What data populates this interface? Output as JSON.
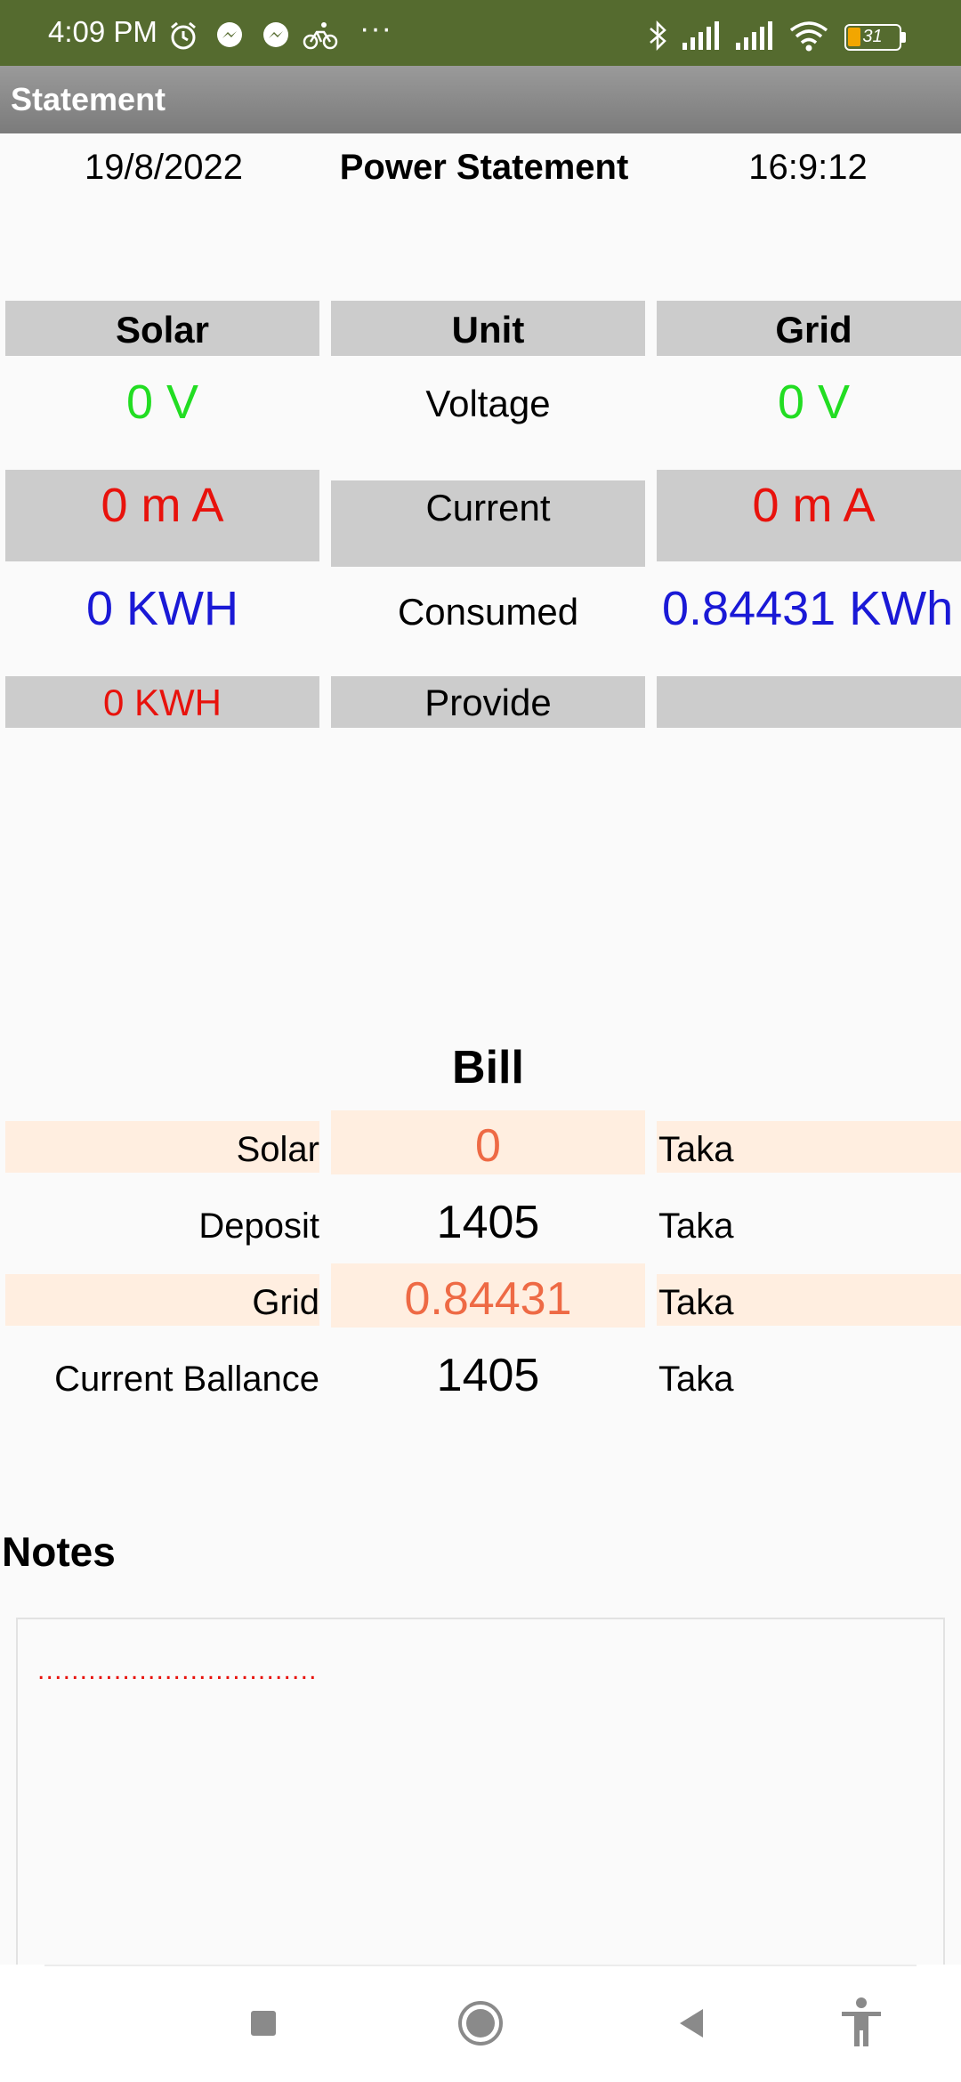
{
  "status_bar": {
    "time": "4:09 PM",
    "more": "···",
    "battery": "31",
    "icons": [
      "alarm-icon",
      "messenger-icon",
      "messenger-icon",
      "cycling-icon",
      "bluetooth-icon",
      "signal-icon",
      "signal-icon",
      "wifi-icon",
      "battery-icon"
    ]
  },
  "title_bar": {
    "title": "Statement"
  },
  "header": {
    "date": "19/8/2022",
    "title": "Power Statement",
    "time": "16:9:12"
  },
  "power_table": {
    "columns": {
      "solar": "Solar",
      "unit": "Unit",
      "grid": "Grid"
    },
    "rows": [
      {
        "unit": "Voltage",
        "solar": "0  V",
        "grid": "0  V"
      },
      {
        "unit": "Current",
        "solar": "0 m A",
        "grid": "0 m A"
      },
      {
        "unit": "Consumed",
        "solar": "0  KWH",
        "grid": "0.84431  KWh"
      },
      {
        "unit": "Provide",
        "solar": "0  KWH",
        "grid": ""
      }
    ],
    "colors": {
      "voltage": "#22dd22",
      "current": "#e8120c",
      "consumed": "#1a19d6",
      "provide": "#e8120c",
      "gray": "#cccccc"
    }
  },
  "bill": {
    "title": "Bill",
    "rows": [
      {
        "label": "Solar",
        "value": "0",
        "unit": "Taka"
      },
      {
        "label": "Deposit",
        "value": "1405",
        "unit": "Taka"
      },
      {
        "label": "Grid",
        "value": "0.84431",
        "unit": "Taka"
      },
      {
        "label": "Current Ballance",
        "value": "1405",
        "unit": "Taka"
      }
    ],
    "colors": {
      "highlight": "#ffeee0",
      "accent_value": "#ee6a45"
    }
  },
  "notes": {
    "title": "Notes",
    "content": "................................."
  },
  "nav_bar": {
    "icons": [
      "recents-icon",
      "home-icon",
      "back-icon",
      "accessibility-icon"
    ]
  }
}
